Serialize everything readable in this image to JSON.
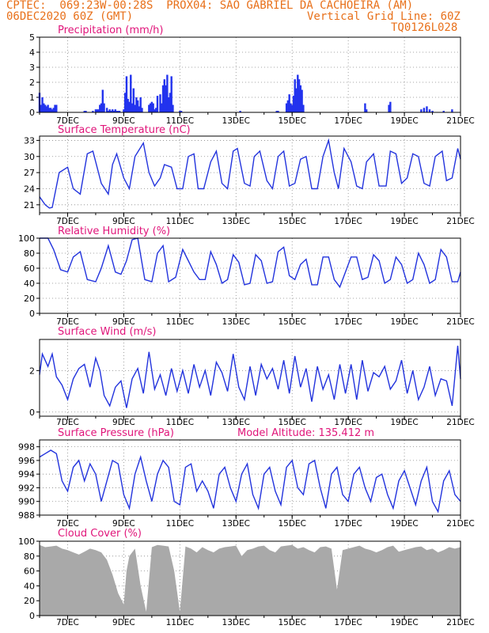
{
  "header": {
    "line1": "CPTEC:  069:23W-00:28S  PROX04: SAO GABRIEL DA CACHOEIRA (AM)",
    "date": "06DEC2020 60Z (GMT)",
    "grid_note": "Vertical Grid Line: 60Z",
    "code": "TQ0126L028"
  },
  "colors": {
    "header": "#e8701a",
    "title": "#e0157a",
    "series": "#2233dd",
    "bar": "#2233ee",
    "cloud": "#a9a9a9",
    "grid": "#888888"
  },
  "x_ticks": [
    "7DEC",
    "9DEC",
    "11DEC",
    "13DEC",
    "15DEC",
    "17DEC",
    "19DEC",
    "21DEC"
  ],
  "chart_data": [
    {
      "type": "bar",
      "title": "Precipitation (mm/h)",
      "ylim": [
        0,
        5
      ],
      "yticks": [
        "0",
        "1",
        "2",
        "3",
        "4",
        "5"
      ],
      "x": [
        6.0,
        6.05,
        6.1,
        6.15,
        6.2,
        6.25,
        6.3,
        6.35,
        6.4,
        6.45,
        6.5,
        6.55,
        6.6,
        7.6,
        7.65,
        7.9,
        8.0,
        8.05,
        8.1,
        8.15,
        8.2,
        8.25,
        8.3,
        8.4,
        8.45,
        8.5,
        8.55,
        8.6,
        8.65,
        8.7,
        8.75,
        8.8,
        8.85,
        9.0,
        9.05,
        9.1,
        9.15,
        9.2,
        9.25,
        9.3,
        9.35,
        9.4,
        9.45,
        9.5,
        9.55,
        9.6,
        9.65,
        9.9,
        9.95,
        10.0,
        10.05,
        10.1,
        10.15,
        10.2,
        10.3,
        10.35,
        10.4,
        10.45,
        10.5,
        10.55,
        10.6,
        10.65,
        10.7,
        10.75,
        11.0,
        11.05,
        13.15,
        14.45,
        14.5,
        14.8,
        14.85,
        14.9,
        14.95,
        15.0,
        15.05,
        15.1,
        15.15,
        15.2,
        15.25,
        15.3,
        15.35,
        15.4,
        17.6,
        17.65,
        18.45,
        18.5,
        19.6,
        19.7,
        19.8,
        19.9,
        20.0,
        20.4,
        20.7
      ],
      "values": [
        1.3,
        0.5,
        1.0,
        0.6,
        0.5,
        0.4,
        0.5,
        0.3,
        0.3,
        0.2,
        0.3,
        0.5,
        0.5,
        0.1,
        0.1,
        0.1,
        0.2,
        0.2,
        0.2,
        0.5,
        0.6,
        1.5,
        0.6,
        0.3,
        0.1,
        0.2,
        0.1,
        0.2,
        0.1,
        0.2,
        0.1,
        0.1,
        0.1,
        0.2,
        1.3,
        2.4,
        0.9,
        0.7,
        2.5,
        0.6,
        1.6,
        0.5,
        1.0,
        0.8,
        0.4,
        1.0,
        0.3,
        0.5,
        0.6,
        0.7,
        0.6,
        0.2,
        0.3,
        1.1,
        1.2,
        0.6,
        1.8,
        2.2,
        1.8,
        2.5,
        1.0,
        1.3,
        2.4,
        0.5,
        0.1,
        0.1,
        0.1,
        0.1,
        0.1,
        0.6,
        0.8,
        1.2,
        0.6,
        0.5,
        1.1,
        2.2,
        1.6,
        2.5,
        2.2,
        1.8,
        1.5,
        0.5,
        0.6,
        0.2,
        0.5,
        0.7,
        0.2,
        0.3,
        0.4,
        0.2,
        0.1,
        0.1,
        0.2
      ],
      "xlim": [
        6.0,
        21.0
      ]
    },
    {
      "type": "line",
      "title": "Surface Temperature (nC)",
      "ylim": [
        19.5,
        33.8
      ],
      "yticks": [
        "21",
        "24",
        "27",
        "30",
        "33"
      ],
      "x": [
        6.0,
        6.2,
        6.35,
        6.45,
        6.7,
        7.0,
        7.2,
        7.45,
        7.7,
        7.9,
        8.2,
        8.45,
        8.6,
        8.75,
        9.0,
        9.2,
        9.4,
        9.7,
        9.9,
        10.1,
        10.3,
        10.45,
        10.7,
        10.9,
        11.1,
        11.3,
        11.5,
        11.65,
        11.85,
        12.1,
        12.3,
        12.5,
        12.7,
        12.9,
        13.05,
        13.3,
        13.5,
        13.65,
        13.85,
        14.1,
        14.3,
        14.5,
        14.7,
        14.9,
        15.1,
        15.3,
        15.5,
        15.7,
        15.9,
        16.1,
        16.3,
        16.5,
        16.65,
        16.85,
        17.1,
        17.3,
        17.5,
        17.65,
        17.9,
        18.1,
        18.35,
        18.5,
        18.7,
        18.9,
        19.1,
        19.3,
        19.5,
        19.7,
        19.9,
        20.1,
        20.35,
        20.5,
        20.7,
        20.9,
        21.0
      ],
      "values": [
        22.5,
        21.0,
        20.4,
        20.5,
        27.0,
        28.0,
        24.0,
        23.0,
        30.5,
        31.0,
        25.0,
        23.0,
        28.5,
        30.5,
        26.0,
        24.0,
        30.0,
        32.5,
        27.0,
        24.5,
        26.0,
        28.5,
        28.0,
        24.0,
        24.0,
        30.0,
        30.5,
        24.0,
        24.0,
        29.0,
        31.0,
        25.0,
        24.0,
        31.0,
        31.5,
        25.0,
        24.5,
        30.0,
        31.0,
        25.5,
        24.0,
        30.0,
        31.0,
        24.5,
        25.0,
        29.5,
        30.0,
        24.0,
        24.0,
        30.0,
        33.0,
        27.0,
        24.0,
        31.5,
        29.0,
        24.5,
        24.0,
        29.0,
        30.5,
        24.5,
        24.5,
        31.0,
        30.5,
        25.0,
        26.0,
        30.5,
        30.0,
        25.0,
        24.5,
        30.0,
        31.0,
        25.5,
        26.0,
        31.5,
        29.5
      ],
      "xlim": [
        6.0,
        21.0
      ]
    },
    {
      "type": "line",
      "title": "Relative Humidity (%)",
      "ylim": [
        0,
        100
      ],
      "yticks": [
        "0",
        "20",
        "40",
        "60",
        "80",
        "100"
      ],
      "x": [
        6.0,
        6.3,
        6.5,
        6.75,
        7.0,
        7.2,
        7.45,
        7.7,
        8.0,
        8.2,
        8.45,
        8.7,
        8.9,
        9.1,
        9.3,
        9.5,
        9.75,
        10.0,
        10.2,
        10.4,
        10.6,
        10.85,
        11.1,
        11.3,
        11.5,
        11.7,
        11.9,
        12.1,
        12.3,
        12.5,
        12.7,
        12.9,
        13.1,
        13.3,
        13.5,
        13.7,
        13.9,
        14.1,
        14.3,
        14.5,
        14.7,
        14.9,
        15.1,
        15.3,
        15.5,
        15.7,
        15.9,
        16.1,
        16.3,
        16.5,
        16.7,
        16.9,
        17.1,
        17.3,
        17.5,
        17.7,
        17.9,
        18.1,
        18.3,
        18.5,
        18.7,
        18.9,
        19.1,
        19.3,
        19.5,
        19.7,
        19.9,
        20.1,
        20.3,
        20.5,
        20.7,
        20.9,
        21.0
      ],
      "values": [
        100,
        100,
        85,
        58,
        55,
        75,
        82,
        45,
        42,
        60,
        90,
        55,
        52,
        70,
        98,
        100,
        45,
        42,
        80,
        90,
        42,
        48,
        85,
        70,
        55,
        45,
        45,
        82,
        65,
        40,
        45,
        78,
        68,
        38,
        40,
        78,
        70,
        40,
        42,
        82,
        88,
        50,
        45,
        65,
        72,
        38,
        38,
        75,
        75,
        45,
        35,
        55,
        75,
        75,
        45,
        48,
        78,
        70,
        40,
        45,
        75,
        65,
        40,
        45,
        80,
        65,
        40,
        45,
        85,
        75,
        42,
        42,
        55
      ],
      "xlim": [
        6.0,
        21.0
      ]
    },
    {
      "type": "line",
      "title": "Surface Wind (m/s)",
      "ylim": [
        -0.2,
        3.5
      ],
      "yticks": [
        "0",
        "2"
      ],
      "x": [
        6.0,
        6.1,
        6.3,
        6.45,
        6.6,
        6.8,
        7.0,
        7.2,
        7.4,
        7.6,
        7.8,
        8.0,
        8.15,
        8.3,
        8.5,
        8.7,
        8.9,
        9.1,
        9.3,
        9.5,
        9.7,
        9.9,
        10.1,
        10.3,
        10.5,
        10.7,
        10.9,
        11.1,
        11.3,
        11.5,
        11.7,
        11.9,
        12.1,
        12.3,
        12.5,
        12.7,
        12.9,
        13.1,
        13.3,
        13.5,
        13.7,
        13.9,
        14.1,
        14.3,
        14.5,
        14.7,
        14.9,
        15.1,
        15.3,
        15.5,
        15.7,
        15.9,
        16.1,
        16.3,
        16.5,
        16.7,
        16.9,
        17.1,
        17.3,
        17.5,
        17.7,
        17.9,
        18.1,
        18.3,
        18.5,
        18.7,
        18.9,
        19.1,
        19.3,
        19.5,
        19.7,
        19.9,
        20.1,
        20.3,
        20.5,
        20.7,
        20.9,
        21.0
      ],
      "values": [
        1.8,
        2.8,
        2.2,
        2.8,
        1.7,
        1.3,
        0.6,
        1.6,
        2.1,
        2.3,
        1.2,
        2.6,
        2.0,
        0.8,
        0.3,
        1.2,
        1.5,
        0.2,
        1.6,
        2.1,
        0.9,
        2.9,
        1.1,
        1.8,
        0.8,
        2.1,
        1.0,
        2.0,
        0.9,
        2.3,
        1.2,
        2.0,
        0.8,
        2.4,
        1.9,
        1.0,
        2.8,
        1.2,
        0.6,
        2.2,
        0.8,
        2.3,
        1.6,
        2.1,
        1.1,
        2.5,
        0.9,
        2.7,
        1.2,
        2.1,
        0.5,
        2.2,
        1.1,
        1.8,
        0.6,
        2.3,
        0.9,
        2.3,
        0.6,
        2.5,
        1.0,
        1.9,
        1.7,
        2.2,
        1.1,
        1.5,
        2.5,
        0.9,
        2.0,
        0.6,
        1.2,
        2.2,
        0.8,
        1.6,
        1.5,
        0.3,
        3.2,
        1.6
      ],
      "xlim": [
        6.0,
        21.0
      ]
    },
    {
      "type": "line",
      "title": "Surface Pressure (hPa)",
      "annotation": "Model Altitude: 135.412 m",
      "ylim": [
        988,
        999
      ],
      "yticks": [
        "988",
        "990",
        "992",
        "994",
        "996",
        "998"
      ],
      "x": [
        6.0,
        6.2,
        6.4,
        6.6,
        6.8,
        7.0,
        7.2,
        7.4,
        7.6,
        7.8,
        8.0,
        8.2,
        8.4,
        8.6,
        8.8,
        9.0,
        9.2,
        9.4,
        9.6,
        9.8,
        10.0,
        10.2,
        10.4,
        10.6,
        10.8,
        11.0,
        11.2,
        11.4,
        11.6,
        11.8,
        12.0,
        12.2,
        12.4,
        12.6,
        12.8,
        13.0,
        13.2,
        13.4,
        13.6,
        13.8,
        14.0,
        14.2,
        14.4,
        14.6,
        14.8,
        15.0,
        15.2,
        15.4,
        15.6,
        15.8,
        16.0,
        16.2,
        16.4,
        16.6,
        16.8,
        17.0,
        17.2,
        17.4,
        17.6,
        17.8,
        18.0,
        18.2,
        18.4,
        18.6,
        18.8,
        19.0,
        19.2,
        19.4,
        19.6,
        19.8,
        20.0,
        20.2,
        20.4,
        20.6,
        20.8,
        21.0
      ],
      "values": [
        996.5,
        997.0,
        997.5,
        997.0,
        993.0,
        991.5,
        995.0,
        996.0,
        993.0,
        995.5,
        994.0,
        990.0,
        993.0,
        996.0,
        995.5,
        991.0,
        989.0,
        994.0,
        996.5,
        993.0,
        990.0,
        994.0,
        996.0,
        995.0,
        990.0,
        989.5,
        995.0,
        995.5,
        991.5,
        993.0,
        991.5,
        989.0,
        994.0,
        995.0,
        992.0,
        990.0,
        994.0,
        995.5,
        991.0,
        989.0,
        994.0,
        995.0,
        991.5,
        989.5,
        995.0,
        996.0,
        992.0,
        991.0,
        995.5,
        996.0,
        992.0,
        989.0,
        994.0,
        995.0,
        991.0,
        990.0,
        994.0,
        995.0,
        992.0,
        990.0,
        993.5,
        994.0,
        991.0,
        989.0,
        993.0,
        994.5,
        992.0,
        989.5,
        993.0,
        995.0,
        990.0,
        988.5,
        993.0,
        994.5,
        991.0,
        990.0
      ],
      "xlim": [
        6.0,
        21.0
      ]
    },
    {
      "type": "area",
      "title": "Cloud Cover (%)",
      "ylim": [
        0,
        100
      ],
      "yticks": [
        "0",
        "20",
        "40",
        "60",
        "80",
        "100"
      ],
      "x": [
        6.0,
        6.2,
        6.4,
        6.6,
        6.8,
        7.0,
        7.2,
        7.4,
        7.6,
        7.8,
        8.0,
        8.2,
        8.4,
        8.6,
        8.8,
        9.0,
        9.1,
        9.2,
        9.4,
        9.6,
        9.8,
        10.0,
        10.2,
        10.4,
        10.6,
        10.8,
        11.0,
        11.2,
        11.4,
        11.6,
        11.8,
        12.0,
        12.2,
        12.4,
        12.6,
        12.8,
        13.0,
        13.2,
        13.4,
        13.6,
        13.8,
        14.0,
        14.2,
        14.4,
        14.6,
        14.8,
        15.0,
        15.2,
        15.4,
        15.6,
        15.8,
        16.0,
        16.2,
        16.4,
        16.6,
        16.8,
        17.0,
        17.2,
        17.4,
        17.6,
        17.8,
        18.0,
        18.2,
        18.4,
        18.6,
        18.8,
        19.0,
        19.2,
        19.4,
        19.6,
        19.8,
        20.0,
        20.2,
        20.4,
        20.6,
        20.8,
        21.0
      ],
      "values": [
        95,
        92,
        93,
        94,
        90,
        88,
        85,
        82,
        86,
        90,
        88,
        85,
        75,
        55,
        30,
        15,
        60,
        80,
        90,
        40,
        5,
        92,
        95,
        94,
        93,
        60,
        5,
        93,
        90,
        85,
        92,
        88,
        85,
        90,
        92,
        93,
        94,
        80,
        88,
        90,
        93,
        94,
        88,
        85,
        93,
        94,
        95,
        90,
        92,
        88,
        85,
        92,
        93,
        90,
        35,
        88,
        90,
        92,
        94,
        90,
        88,
        85,
        88,
        92,
        94,
        86,
        88,
        90,
        92,
        93,
        88,
        90,
        85,
        88,
        92,
        90,
        92
      ],
      "xlim": [
        6.0,
        21.0
      ]
    }
  ]
}
